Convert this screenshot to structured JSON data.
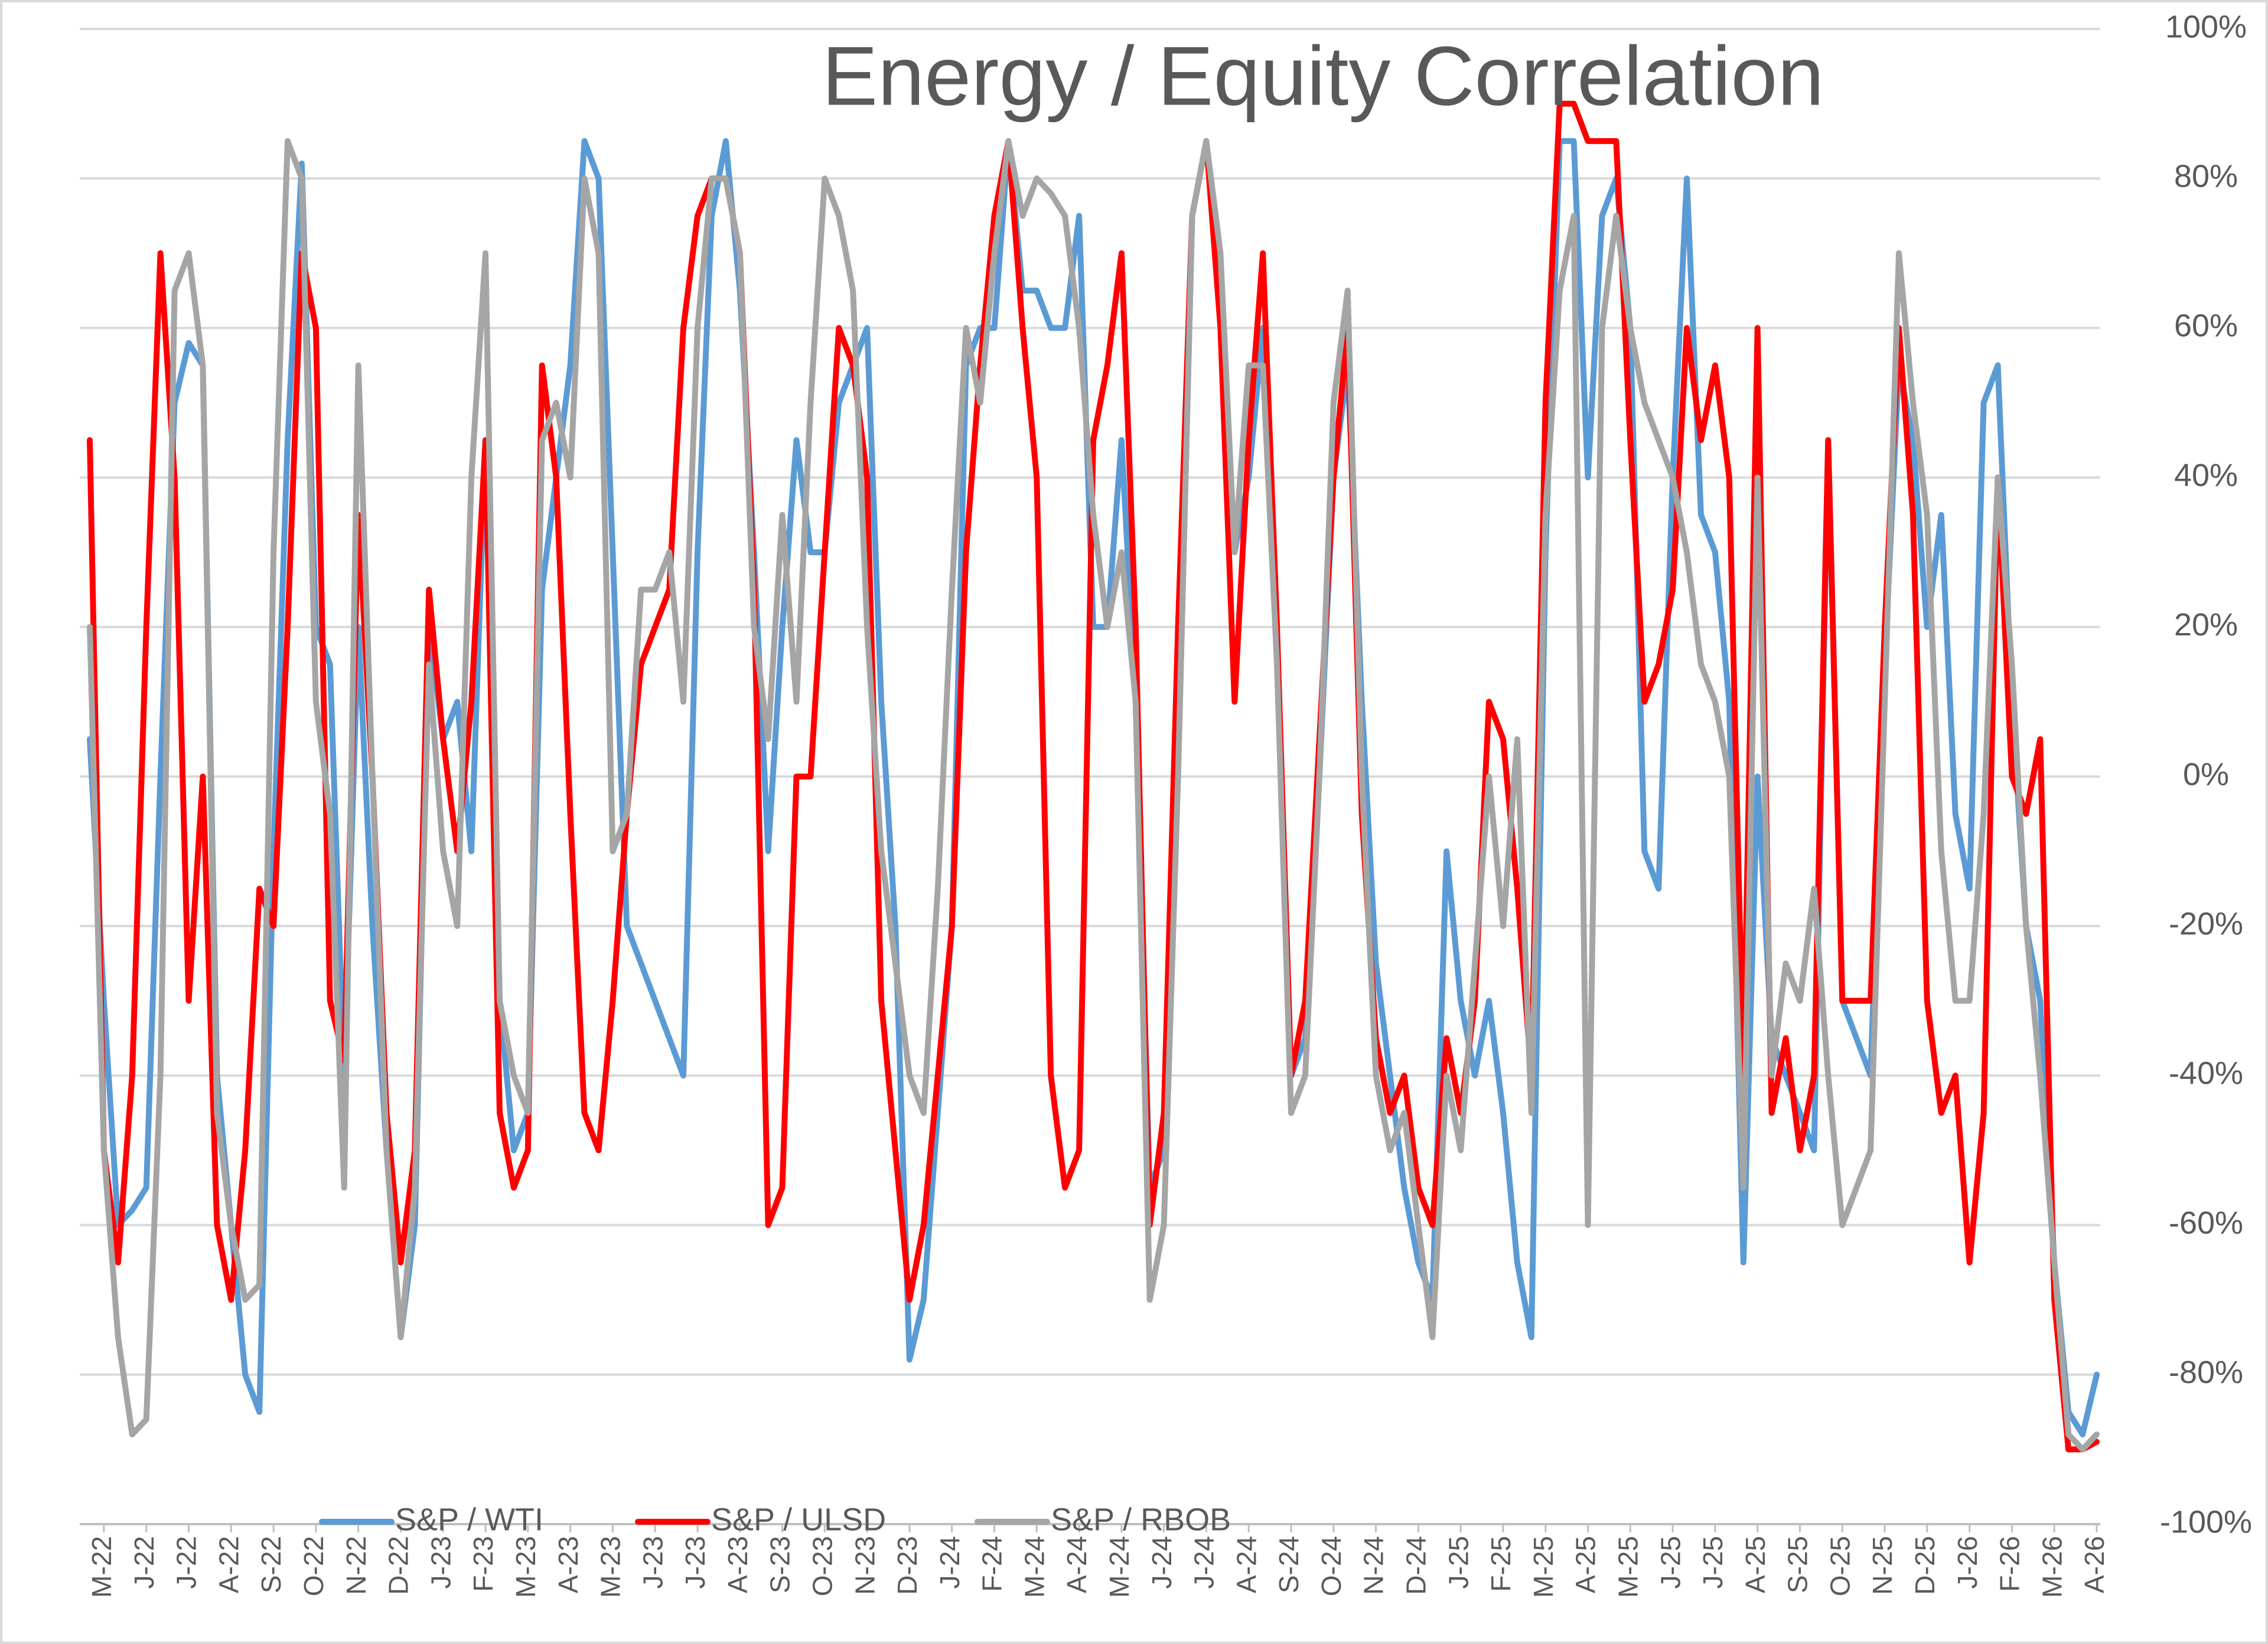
{
  "chart_data": {
    "type": "line",
    "title": "Energy / Equity Correlation",
    "categories": [
      null,
      "M-22",
      null,
      null,
      "J-22",
      null,
      null,
      "J-22",
      null,
      null,
      "A-22",
      null,
      null,
      "S-22",
      null,
      null,
      "O-22",
      null,
      null,
      "N-22",
      null,
      null,
      "D-22",
      null,
      null,
      "J-23",
      null,
      null,
      "F-23",
      null,
      null,
      "M-23",
      null,
      null,
      "A-23",
      null,
      null,
      "M-23",
      null,
      null,
      "J-23",
      null,
      null,
      "J-23",
      null,
      null,
      "A-23",
      null,
      null,
      "S-23",
      null,
      null,
      "O-23",
      null,
      null,
      "N-23",
      null,
      null,
      "D-23",
      null,
      null,
      "J-24",
      null,
      null,
      "F-24",
      null,
      null,
      "M-24",
      null,
      null,
      "A-24",
      null,
      null,
      "M-24",
      null,
      null,
      "J-24",
      null,
      null,
      "J-24",
      null,
      null,
      "A-24",
      null,
      null,
      "S-24",
      null,
      null,
      "O-24",
      null,
      null,
      "N-24",
      null,
      null,
      "D-24",
      null,
      null,
      "J-25",
      null,
      null,
      "F-25",
      null,
      null,
      "M-25",
      null,
      null,
      "A-25",
      null,
      null,
      "M-25",
      null,
      null,
      "J-25",
      null,
      null,
      "J-25",
      null,
      null,
      "A-25",
      null,
      null,
      "S-25",
      null,
      null,
      "O-25",
      null,
      null,
      "N-25",
      null,
      null,
      "D-25",
      null,
      null,
      "J-26",
      null,
      null,
      "F-26",
      null,
      null,
      "M-26",
      null,
      null,
      "A-26"
    ],
    "series": [
      {
        "name": "S&P / WTI",
        "color": "#5b9bd5",
        "values": [
          5,
          -30,
          -60,
          -58,
          -55,
          0,
          50,
          58,
          55,
          -40,
          -60,
          -80,
          -85,
          -10,
          45,
          82,
          20,
          15,
          -40,
          20,
          -20,
          -50,
          -75,
          -60,
          20,
          5,
          10,
          -10,
          45,
          -30,
          -50,
          -45,
          25,
          40,
          55,
          85,
          80,
          30,
          -20,
          -25,
          -30,
          -35,
          -40,
          30,
          75,
          85,
          65,
          30,
          -10,
          20,
          45,
          30,
          30,
          50,
          55,
          60,
          10,
          -20,
          -78,
          -70,
          -45,
          -20,
          55,
          60,
          60,
          85,
          65,
          65,
          60,
          60,
          75,
          20,
          20,
          45,
          10,
          -55,
          -50,
          0,
          75,
          85,
          65,
          30,
          40,
          60,
          15,
          -40,
          -35,
          0,
          40,
          55,
          10,
          -25,
          -40,
          -55,
          -65,
          -70,
          -10,
          -30,
          -40,
          -30,
          -45,
          -65,
          -75,
          30,
          85,
          85,
          40,
          75,
          80,
          60,
          -10,
          -15,
          40,
          80,
          35,
          30,
          10,
          -65,
          0,
          -35,
          -40,
          -45,
          -50,
          45,
          -30,
          -35,
          -40,
          15,
          55,
          45,
          20,
          35,
          -5,
          -15,
          50,
          55,
          10,
          -20,
          -30,
          -65,
          -85,
          -88,
          -80
        ]
      },
      {
        "name": "S&P / ULSD",
        "color": "#ff0000",
        "values": [
          45,
          -50,
          -65,
          -40,
          20,
          70,
          40,
          -30,
          0,
          -60,
          -70,
          -50,
          -15,
          -20,
          20,
          70,
          60,
          -30,
          -38,
          35,
          0,
          -45,
          -65,
          -50,
          25,
          5,
          -10,
          10,
          45,
          -45,
          -55,
          -50,
          55,
          40,
          -5,
          -45,
          -50,
          -30,
          -5,
          15,
          20,
          25,
          60,
          75,
          80,
          80,
          70,
          25,
          -60,
          -55,
          0,
          0,
          30,
          60,
          55,
          40,
          -30,
          -50,
          -70,
          -60,
          -40,
          -20,
          30,
          55,
          75,
          85,
          60,
          40,
          -40,
          -55,
          -50,
          45,
          55,
          70,
          20,
          -60,
          -45,
          20,
          75,
          85,
          60,
          10,
          45,
          70,
          20,
          -40,
          -30,
          5,
          40,
          60,
          -5,
          -35,
          -45,
          -40,
          -55,
          -60,
          -35,
          -45,
          -30,
          10,
          5,
          -15,
          -40,
          50,
          90,
          90,
          85,
          85,
          85,
          45,
          10,
          15,
          25,
          60,
          45,
          55,
          40,
          -40,
          60,
          -45,
          -35,
          -50,
          -40,
          45,
          -30,
          -30,
          -30,
          20,
          60,
          35,
          -30,
          -45,
          -40,
          -65,
          -45,
          40,
          0,
          -5,
          5,
          -70,
          -90,
          -90,
          -89
        ]
      },
      {
        "name": "S&P / RBOB",
        "color": "#a5a5a5",
        "values": [
          20,
          -50,
          -75,
          -88,
          -86,
          -40,
          65,
          70,
          55,
          -45,
          -60,
          -70,
          -68,
          30,
          85,
          80,
          10,
          -5,
          -55,
          55,
          0,
          -50,
          -75,
          -55,
          15,
          -10,
          -20,
          40,
          70,
          -30,
          -40,
          -45,
          45,
          50,
          40,
          80,
          70,
          -10,
          -5,
          25,
          25,
          30,
          10,
          60,
          80,
          80,
          70,
          20,
          5,
          35,
          10,
          50,
          80,
          75,
          65,
          20,
          -10,
          -25,
          -40,
          -45,
          -15,
          25,
          60,
          50,
          70,
          85,
          75,
          80,
          78,
          75,
          60,
          35,
          20,
          30,
          10,
          -70,
          -60,
          0,
          75,
          85,
          70,
          30,
          55,
          55,
          15,
          -45,
          -40,
          0,
          50,
          65,
          0,
          -40,
          -50,
          -45,
          -60,
          -75,
          -40,
          -50,
          -25,
          0,
          -20,
          5,
          -45,
          35,
          65,
          75,
          -60,
          60,
          75,
          60,
          50,
          45,
          40,
          30,
          15,
          10,
          0,
          -55,
          40,
          -40,
          -25,
          -30,
          -15,
          -40,
          -60,
          -55,
          -50,
          10,
          70,
          50,
          35,
          -10,
          -30,
          -30,
          -5,
          40,
          15,
          -20,
          -40,
          -65,
          -88,
          -90,
          -88
        ]
      }
    ],
    "ylim": [
      -100,
      100
    ],
    "yticks": [
      {
        "value": -100,
        "label": "-100%"
      },
      {
        "value": -80,
        "label": "-80%"
      },
      {
        "value": -60,
        "label": "-60%"
      },
      {
        "value": -40,
        "label": "-40%"
      },
      {
        "value": -20,
        "label": "-20%"
      },
      {
        "value": 0,
        "label": "0%"
      },
      {
        "value": 20,
        "label": "20%"
      },
      {
        "value": 40,
        "label": "40%"
      },
      {
        "value": 60,
        "label": "60%"
      },
      {
        "value": 80,
        "label": "80%"
      },
      {
        "value": 100,
        "label": "100%"
      }
    ],
    "grid": true,
    "legend": "bottom"
  }
}
